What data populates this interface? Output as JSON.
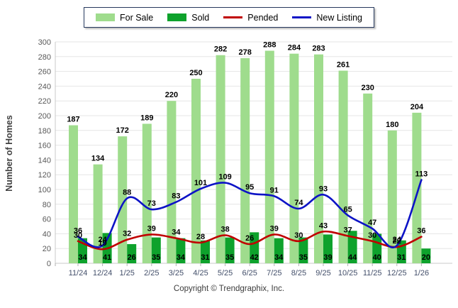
{
  "chart_data": {
    "type": "bar",
    "categories": [
      "11/24",
      "12/24",
      "1/25",
      "2/25",
      "3/25",
      "4/25",
      "5/25",
      "6/25",
      "7/25",
      "8/25",
      "9/25",
      "10/25",
      "11/25",
      "12/25",
      "1/26"
    ],
    "series": [
      {
        "name": "For Sale",
        "type": "bar",
        "color": "#9fdc8d",
        "values": [
          187,
          134,
          172,
          189,
          220,
          250,
          282,
          278,
          288,
          284,
          283,
          261,
          230,
          180,
          204
        ]
      },
      {
        "name": "Sold",
        "type": "bar",
        "color": "#0ea22c",
        "values": [
          34,
          41,
          26,
          35,
          34,
          31,
          35,
          42,
          34,
          35,
          39,
          44,
          40,
          31,
          20
        ]
      },
      {
        "name": "Pended",
        "type": "line",
        "color": "#c00000",
        "values": [
          30,
          19,
          32,
          39,
          34,
          28,
          38,
          26,
          39,
          30,
          43,
          37,
          30,
          22,
          36
        ]
      },
      {
        "name": "New Listing",
        "type": "line",
        "color": "#0d13c6",
        "values": [
          36,
          24,
          88,
          73,
          83,
          101,
          109,
          95,
          91,
          74,
          93,
          65,
          47,
          24,
          113
        ]
      }
    ],
    "title": "",
    "xlabel": "",
    "ylabel": "Number of Homes",
    "ylim": [
      0,
      300
    ],
    "ytick_step": 20,
    "grid": true,
    "legend_position": "top"
  },
  "footer": {
    "copyright": "Copyright © Trendgraphix, Inc."
  }
}
